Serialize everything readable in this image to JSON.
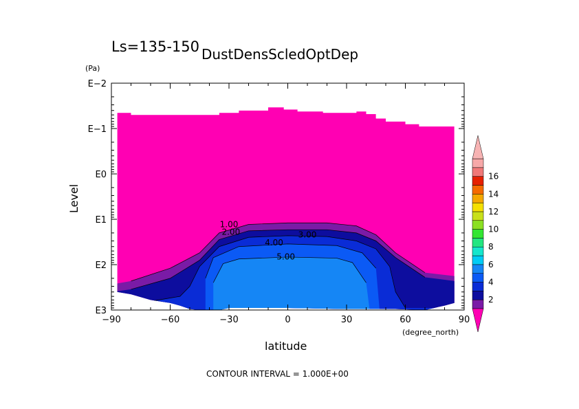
{
  "chart_data": {
    "type": "contour",
    "title": "DustDensScledOptDep",
    "subtitle": "Ls=135-150",
    "xlabel": "latitude",
    "x_unit": "(degree_north)",
    "ylabel": "Level",
    "y_unit": "(Pa)",
    "y_scale": "log",
    "y_reversed": true,
    "xlim": [
      -90,
      90
    ],
    "ylim_pa": [
      1000,
      0.01
    ],
    "x_ticks": [
      -90,
      -60,
      -30,
      0,
      30,
      60,
      90
    ],
    "x_tick_labels": [
      "−90",
      "−60",
      "−30",
      "0",
      "30",
      "60",
      "90"
    ],
    "y_ticks": [
      0.01,
      0.1,
      1,
      10,
      100,
      1000
    ],
    "y_tick_labels": [
      "E−2",
      "E−1",
      "E0",
      "E1",
      "E2",
      "E3"
    ],
    "contour_interval": "CONTOUR INTERVAL = 1.000E+00",
    "contour_labels": [
      {
        "text": "1.00",
        "lat": -30,
        "p": 13
      },
      {
        "text": "2.00",
        "lat": -29,
        "p": 19
      },
      {
        "text": "3.00",
        "lat": 10,
        "p": 22
      },
      {
        "text": "4.00",
        "lat": -7,
        "p": 33
      },
      {
        "text": "5.00",
        "lat": -1,
        "p": 67
      }
    ],
    "colorbar": {
      "levels": [
        1,
        2,
        3,
        4,
        5,
        6,
        7,
        8,
        9,
        10,
        11,
        12,
        13,
        14,
        15,
        16,
        17
      ],
      "tick_labels": [
        "2",
        "4",
        "6",
        "8",
        "10",
        "12",
        "14",
        "16"
      ],
      "extend": "both",
      "colors": [
        "#7a1ba6",
        "#0d0d9e",
        "#0a2cd6",
        "#0b5af5",
        "#1586f5",
        "#00ccf5",
        "#15e6cc",
        "#22e680",
        "#33e633",
        "#8be023",
        "#c8e01a",
        "#f5e000",
        "#f5a800",
        "#f56a00",
        "#e62000",
        "#f07878",
        "#f7a8a8"
      ],
      "under_color": "#ff00b3",
      "over_color": "#f7b3b3"
    },
    "fields": {
      "region_top_pa_by_lat": [
        [
          -87,
          0.045
        ],
        [
          -80,
          0.05
        ],
        [
          -60,
          0.05
        ],
        [
          -40,
          0.05
        ],
        [
          -35,
          0.045
        ],
        [
          -25,
          0.04
        ],
        [
          -12,
          0.04
        ],
        [
          -10,
          0.034
        ],
        [
          -2,
          0.038
        ],
        [
          5,
          0.042
        ],
        [
          18,
          0.045
        ],
        [
          32,
          0.045
        ],
        [
          35,
          0.042
        ],
        [
          40,
          0.048
        ],
        [
          45,
          0.06
        ],
        [
          50,
          0.07
        ],
        [
          60,
          0.08
        ],
        [
          67,
          0.09
        ],
        [
          85,
          0.09
        ]
      ],
      "region_bottom_pa_by_lat": [
        [
          -87,
          400
        ],
        [
          -80,
          450
        ],
        [
          -70,
          600
        ],
        [
          -60,
          700
        ],
        [
          -55,
          800
        ],
        [
          -50,
          950
        ],
        [
          -45,
          1000
        ],
        [
          -40,
          1100
        ],
        [
          -35,
          1000
        ],
        [
          -30,
          900
        ],
        [
          0,
          900
        ],
        [
          30,
          950
        ],
        [
          45,
          950
        ],
        [
          55,
          950
        ],
        [
          70,
          1000
        ],
        [
          80,
          800
        ],
        [
          85,
          700
        ]
      ]
    }
  }
}
